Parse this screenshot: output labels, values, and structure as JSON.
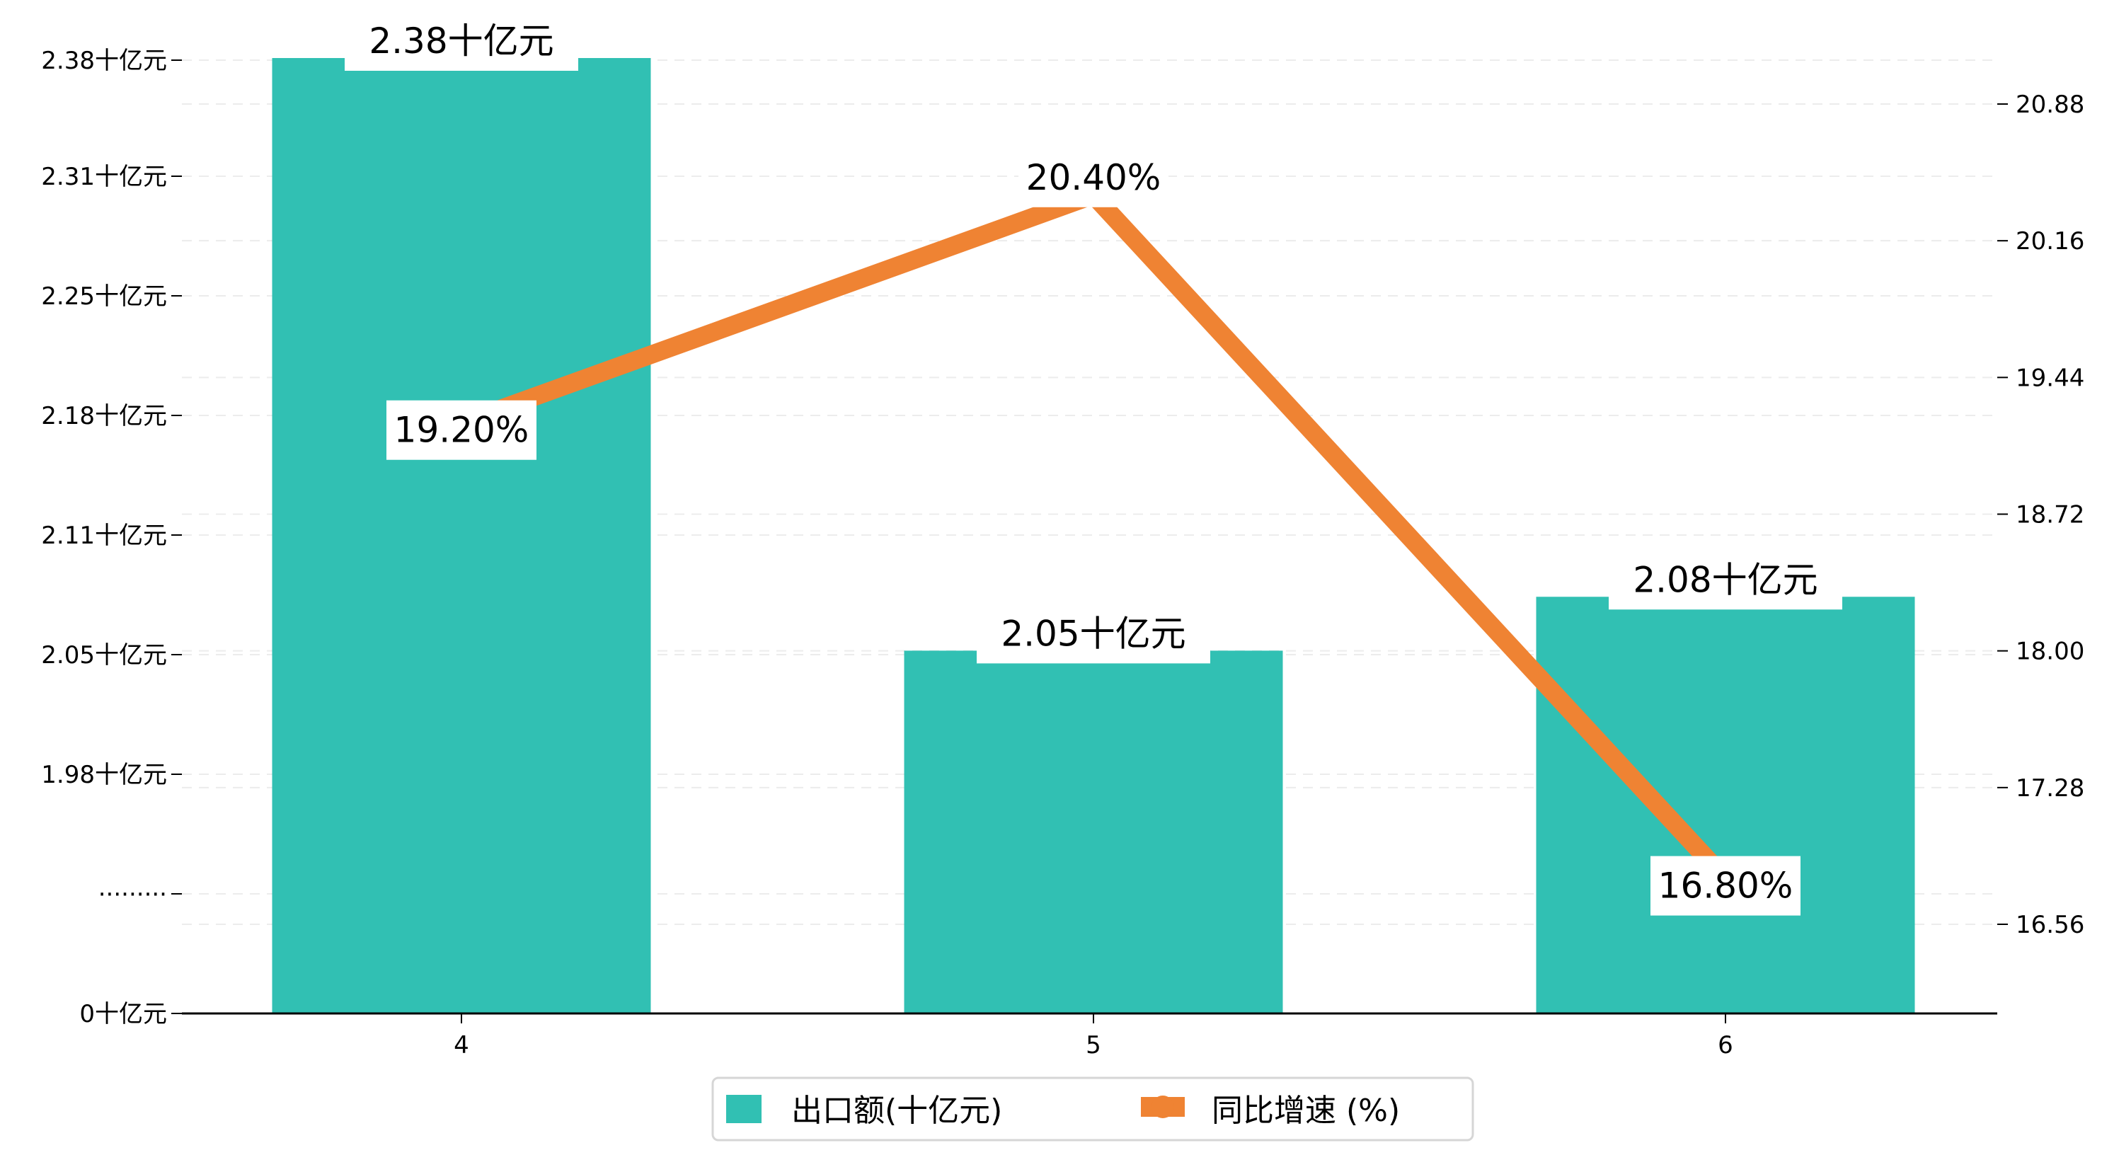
{
  "chart_data": {
    "type": "bar+line",
    "categories": [
      "4",
      "5",
      "6"
    ],
    "series": [
      {
        "name": "出口额(十亿元)",
        "type": "bar",
        "axis": "left",
        "values": [
          2.38,
          2.05,
          2.08
        ],
        "labels": [
          "2.38十亿元",
          "2.05十亿元",
          "2.08十亿元"
        ],
        "color": "#31C0B3"
      },
      {
        "name": "同比增速 (%)",
        "type": "line",
        "axis": "right",
        "values": [
          19.2,
          20.4,
          16.8
        ],
        "labels": [
          "19.20%",
          "20.40%",
          "16.80%"
        ],
        "color": "#EF8333"
      }
    ],
    "left_axis": {
      "tick_labels": [
        "0十亿元",
        "·········",
        "1.98十亿元",
        "2.05十亿元",
        "2.11十亿元",
        "2.18十亿元",
        "2.25十亿元",
        "2.31十亿元",
        "2.38十亿元"
      ],
      "broken": true,
      "range_upper": [
        1.98,
        2.38
      ]
    },
    "right_axis": {
      "tick_labels": [
        "16.56",
        "17.28",
        "18.00",
        "18.72",
        "19.44",
        "20.16",
        "20.88"
      ],
      "ticks": [
        16.56,
        17.28,
        18.0,
        18.72,
        19.44,
        20.16,
        20.88
      ]
    },
    "grid": true,
    "legend": {
      "placement": "bottom-center",
      "entries": [
        "出口额(十亿元)",
        "同比增速 (%)"
      ]
    },
    "title": "",
    "xlabel": "",
    "ylabel": ""
  }
}
